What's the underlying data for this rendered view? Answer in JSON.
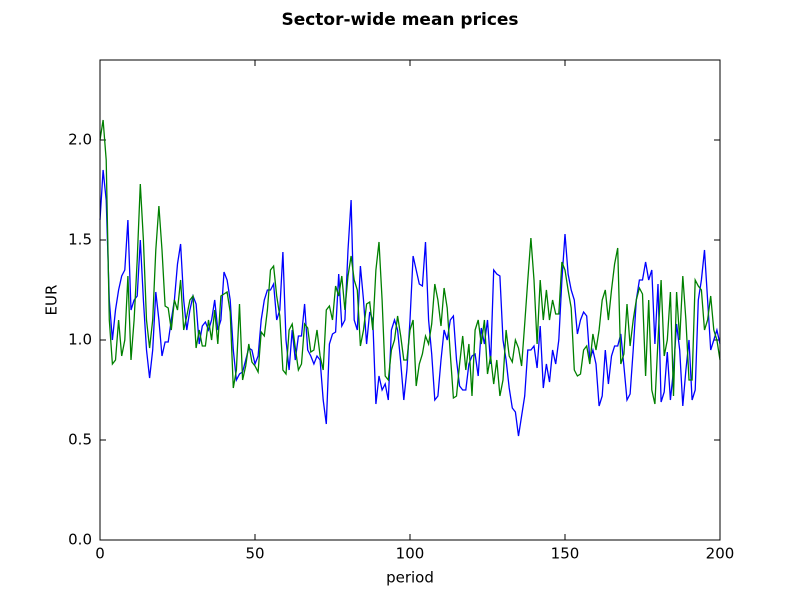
{
  "chart_data": {
    "type": "line",
    "title": "Sector-wide mean prices",
    "x_label": "period",
    "y_label": "EUR",
    "x": [
      0,
      1,
      2,
      3,
      4,
      5,
      6,
      7,
      8,
      9,
      10,
      11,
      12,
      13,
      14,
      15,
      16,
      17,
      18,
      19,
      20,
      21,
      22,
      23,
      24,
      25,
      26,
      27,
      28,
      29,
      30,
      31,
      32,
      33,
      34,
      35,
      36,
      37,
      38,
      39,
      40,
      41,
      42,
      43,
      44,
      45,
      46,
      47,
      48,
      49,
      50,
      51,
      52,
      53,
      54,
      55,
      56,
      57,
      58,
      59,
      60,
      61,
      62,
      63,
      64,
      65,
      66,
      67,
      68,
      69,
      70,
      71,
      72,
      73,
      74,
      75,
      76,
      77,
      78,
      79,
      80,
      81,
      82,
      83,
      84,
      85,
      86,
      87,
      88,
      89,
      90,
      91,
      92,
      93,
      94,
      95,
      96,
      97,
      98,
      99,
      100,
      101,
      102,
      103,
      104,
      105,
      106,
      107,
      108,
      109,
      110,
      111,
      112,
      113,
      114,
      115,
      116,
      117,
      118,
      119,
      120,
      121,
      122,
      123,
      124,
      125,
      126,
      127,
      128,
      129,
      130,
      131,
      132,
      133,
      134,
      135,
      136,
      137,
      138,
      139,
      140,
      141,
      142,
      143,
      144,
      145,
      146,
      147,
      148,
      149,
      150,
      151,
      152,
      153,
      154,
      155,
      156,
      157,
      158,
      159,
      160,
      161,
      162,
      163,
      164,
      165,
      166,
      167,
      168,
      169,
      170,
      171,
      172,
      173,
      174,
      175,
      176,
      177,
      178,
      179,
      180,
      181,
      182,
      183,
      184,
      185,
      186,
      187,
      188,
      189,
      190,
      191,
      192,
      193,
      194,
      195,
      196,
      197,
      198,
      199,
      200
    ],
    "series": [
      {
        "color": "#0000ff",
        "values": [
          1.6,
          1.85,
          1.7,
          1.2,
          1.0,
          1.15,
          1.25,
          1.32,
          1.35,
          1.6,
          1.15,
          1.2,
          1.22,
          1.5,
          1.2,
          0.95,
          0.81,
          0.95,
          1.24,
          1.1,
          0.92,
          0.99,
          0.99,
          1.1,
          1.2,
          1.38,
          1.48,
          1.2,
          1.05,
          1.15,
          1.22,
          1.18,
          0.98,
          1.07,
          1.09,
          1.05,
          1.1,
          1.2,
          1.05,
          1.1,
          1.34,
          1.3,
          1.2,
          0.95,
          0.8,
          0.83,
          0.84,
          0.9,
          0.96,
          0.95,
          0.88,
          0.92,
          1.1,
          1.2,
          1.25,
          1.25,
          1.28,
          1.1,
          1.15,
          1.44,
          1.0,
          0.85,
          1.05,
          0.9,
          1.02,
          1.02,
          1.18,
          0.95,
          0.92,
          0.88,
          0.92,
          0.9,
          0.7,
          0.58,
          0.98,
          1.03,
          1.04,
          1.33,
          1.07,
          1.1,
          1.45,
          1.7,
          1.1,
          1.05,
          1.37,
          1.2,
          0.98,
          1.14,
          1.1,
          0.68,
          0.82,
          0.75,
          0.78,
          0.7,
          1.05,
          1.1,
          1.05,
          0.89,
          0.7,
          0.85,
          1.1,
          1.42,
          1.35,
          1.28,
          1.27,
          1.49,
          1.1,
          0.93,
          0.7,
          0.72,
          0.9,
          1.05,
          1.0,
          1.1,
          1.12,
          0.9,
          0.77,
          0.75,
          0.75,
          0.88,
          0.92,
          0.93,
          0.82,
          1.06,
          0.98,
          1.1,
          0.88,
          1.35,
          1.33,
          1.32,
          1.0,
          0.9,
          0.76,
          0.66,
          0.64,
          0.52,
          0.62,
          0.72,
          0.95,
          0.95,
          0.97,
          0.86,
          1.07,
          0.76,
          0.88,
          0.79,
          0.95,
          0.88,
          1.0,
          1.3,
          1.53,
          1.33,
          1.25,
          1.2,
          1.03,
          1.1,
          1.14,
          1.12,
          0.9,
          0.95,
          0.88,
          0.67,
          0.72,
          0.95,
          0.78,
          0.92,
          0.97,
          0.97,
          1.03,
          0.87,
          0.7,
          0.73,
          0.95,
          1.2,
          1.3,
          1.3,
          1.39,
          1.3,
          1.35,
          0.98,
          1.28,
          0.69,
          0.74,
          0.94,
          0.7,
          0.85,
          1.08,
          0.95,
          0.67,
          0.85,
          1.0,
          0.7,
          0.75,
          1.2,
          1.3,
          1.45,
          1.2,
          0.95,
          1.0,
          1.05,
          0.98
        ]
      },
      {
        "color": "#008000",
        "values": [
          2.0,
          2.1,
          1.9,
          1.1,
          0.88,
          0.9,
          1.1,
          0.92,
          1.0,
          1.32,
          0.9,
          1.1,
          1.4,
          1.78,
          1.5,
          1.1,
          0.96,
          1.1,
          1.45,
          1.67,
          1.45,
          1.17,
          1.16,
          1.05,
          1.2,
          1.15,
          1.3,
          1.05,
          1.12,
          1.2,
          1.22,
          0.96,
          1.05,
          0.97,
          0.97,
          1.1,
          1.0,
          1.15,
          0.98,
          1.22,
          1.23,
          1.24,
          1.14,
          0.76,
          0.85,
          1.18,
          0.8,
          0.87,
          0.98,
          0.89,
          0.87,
          0.84,
          1.04,
          1.02,
          1.15,
          1.35,
          1.37,
          1.22,
          1.12,
          0.85,
          0.83,
          1.05,
          1.08,
          0.96,
          0.85,
          0.88,
          1.08,
          1.06,
          0.94,
          0.95,
          1.05,
          0.92,
          0.85,
          1.15,
          1.17,
          1.1,
          1.27,
          1.22,
          1.32,
          1.15,
          1.32,
          1.42,
          1.3,
          1.25,
          0.97,
          1.05,
          1.18,
          1.19,
          1.05,
          1.35,
          1.49,
          1.2,
          0.82,
          0.8,
          0.95,
          1.0,
          1.12,
          1.02,
          0.9,
          0.9,
          1.05,
          1.1,
          0.77,
          0.88,
          0.93,
          1.02,
          0.98,
          1.08,
          1.28,
          1.2,
          1.07,
          1.26,
          1.16,
          0.93,
          0.71,
          0.72,
          0.88,
          1.02,
          0.85,
          0.98,
          0.72,
          1.05,
          1.1,
          0.98,
          1.1,
          0.83,
          0.92,
          0.78,
          0.9,
          0.72,
          0.8,
          1.05,
          0.92,
          0.89,
          1.0,
          0.96,
          0.87,
          1.08,
          1.3,
          1.51,
          1.3,
          0.98,
          1.3,
          1.1,
          1.25,
          1.1,
          1.2,
          1.13,
          1.13,
          1.39,
          1.35,
          1.25,
          1.16,
          0.85,
          0.82,
          0.83,
          0.95,
          0.97,
          0.88,
          1.03,
          0.95,
          1.05,
          1.2,
          1.25,
          1.1,
          1.25,
          1.38,
          1.46,
          0.88,
          0.93,
          1.18,
          0.97,
          1.1,
          1.2,
          1.26,
          1.23,
          0.82,
          1.2,
          0.75,
          0.68,
          1.0,
          1.3,
          0.92,
          1.0,
          1.24,
          0.72,
          1.24,
          1.0,
          1.32,
          1.1,
          0.8,
          0.8,
          1.3,
          1.27,
          1.25,
          1.05,
          1.1,
          1.22,
          1.05,
          1.0,
          0.9
        ]
      }
    ],
    "xlim": [
      0,
      200
    ],
    "xticks": [
      0,
      50,
      100,
      150,
      200
    ],
    "ylim": [
      0,
      2.4
    ],
    "yticks": [
      {
        "value": 0,
        "label": "0.0"
      },
      0.5,
      {
        "value": 1,
        "label": "1.0"
      },
      1.5,
      {
        "value": 2,
        "label": "2.0"
      }
    ],
    "grid": false
  }
}
